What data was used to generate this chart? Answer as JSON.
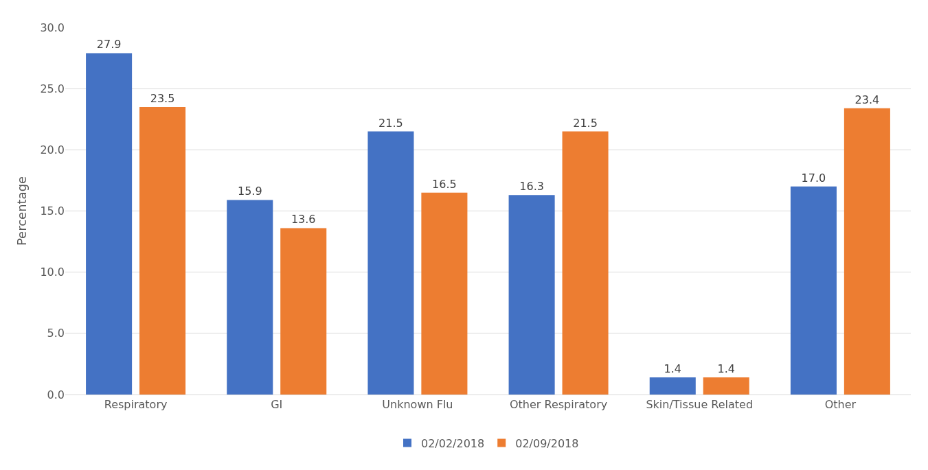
{
  "chart_data": {
    "type": "bar",
    "ylabel": "Percentage",
    "categories": [
      "Respiratory",
      "GI",
      "Unknown Flu",
      "Other Respiratory",
      "Skin/Tissue Related",
      "Other"
    ],
    "series": [
      {
        "name": "02/02/2018",
        "color": "#4472c4",
        "values": [
          27.9,
          15.9,
          21.5,
          16.3,
          1.4,
          17.0
        ],
        "value_labels": [
          "27.9",
          "15.9",
          "21.5",
          "16.3",
          "1.4",
          "17.0"
        ]
      },
      {
        "name": "02/09/2018",
        "color": "#ed7d31",
        "values": [
          23.5,
          13.6,
          16.5,
          21.5,
          1.4,
          23.4
        ],
        "value_labels": [
          "23.5",
          "13.6",
          "16.5",
          "21.5",
          "1.4",
          "23.4"
        ]
      }
    ],
    "ylim": [
      0,
      30
    ],
    "yticks": [
      {
        "value": 0,
        "label": "0.0"
      },
      {
        "value": 5,
        "label": "5.0"
      },
      {
        "value": 10,
        "label": "10.0"
      },
      {
        "value": 15,
        "label": "15.0"
      },
      {
        "value": 20,
        "label": "20.0"
      },
      {
        "value": 25,
        "label": "25.0"
      },
      {
        "value": 30,
        "label": "30.0"
      }
    ],
    "grid": "y",
    "legend": "bottom"
  }
}
